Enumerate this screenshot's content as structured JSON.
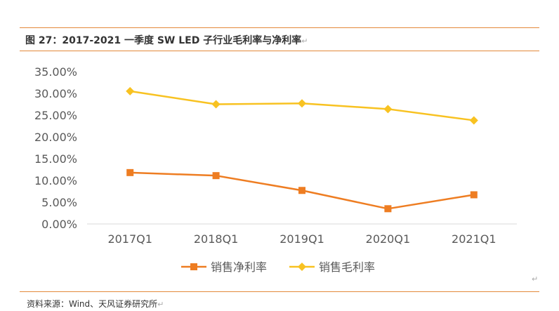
{
  "figure": {
    "title": "图 27：2017-2021 一季度 SW LED 子行业毛利率与净利率",
    "source": "资料来源：Wind、天风证券研究所",
    "return_mark": "↵"
  },
  "chart_data": {
    "type": "line",
    "categories": [
      "2017Q1",
      "2018Q1",
      "2019Q1",
      "2020Q1",
      "2021Q1"
    ],
    "y_ticks": [
      "0.00%",
      "5.00%",
      "10.00%",
      "15.00%",
      "20.00%",
      "25.00%",
      "30.00%",
      "35.00%"
    ],
    "ylim": [
      0,
      35
    ],
    "series": [
      {
        "name": "销售净利率",
        "values": [
          11.8,
          11.1,
          7.7,
          3.5,
          6.7
        ],
        "color": "#ee7d22",
        "marker": "square"
      },
      {
        "name": "销售毛利率",
        "values": [
          30.5,
          27.5,
          27.7,
          26.4,
          23.8
        ],
        "color": "#f8c221",
        "marker": "diamond"
      }
    ],
    "legend_position": "bottom"
  }
}
